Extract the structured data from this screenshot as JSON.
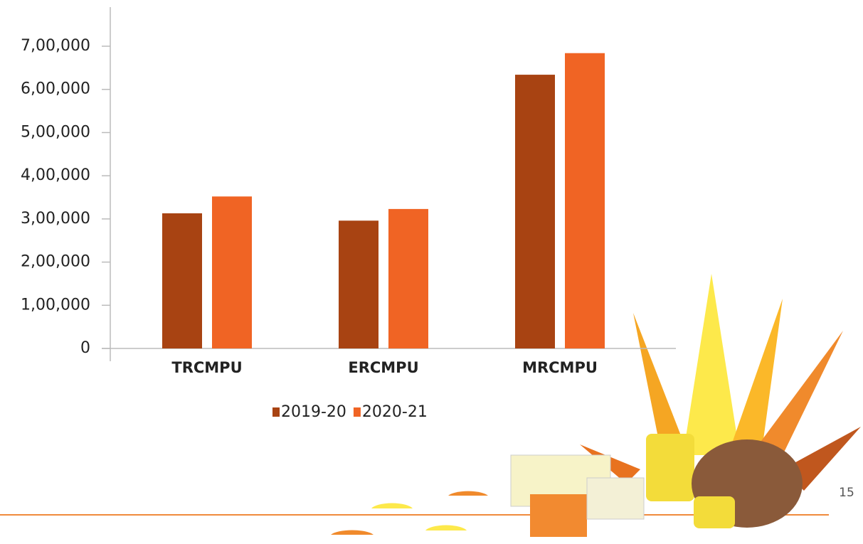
{
  "chart_data": {
    "type": "bar",
    "categories": [
      "TRCMPU",
      "ERCMPU",
      "MRCMPU"
    ],
    "series": [
      {
        "name": "2019-20",
        "color": "#a84312",
        "values": [
          313000,
          296000,
          634000
        ]
      },
      {
        "name": "2020-21",
        "color": "#f06424",
        "values": [
          352000,
          323000,
          684000
        ]
      }
    ],
    "ylim": [
      0,
      700000
    ],
    "yticks": [
      0,
      {
        "value": 100000,
        "label": "1,00,000"
      },
      {
        "value": 200000,
        "label": "2,00,000"
      },
      {
        "value": 300000,
        "label": "3,00,000"
      },
      {
        "value": 400000,
        "label": "4,00,000"
      },
      {
        "value": 500000,
        "label": "5,00,000"
      },
      {
        "value": 600000,
        "label": "6,00,000"
      },
      {
        "value": 700000,
        "label": "7,00,000"
      }
    ],
    "grid": false,
    "legend": "bottom"
  },
  "page_number": "15"
}
